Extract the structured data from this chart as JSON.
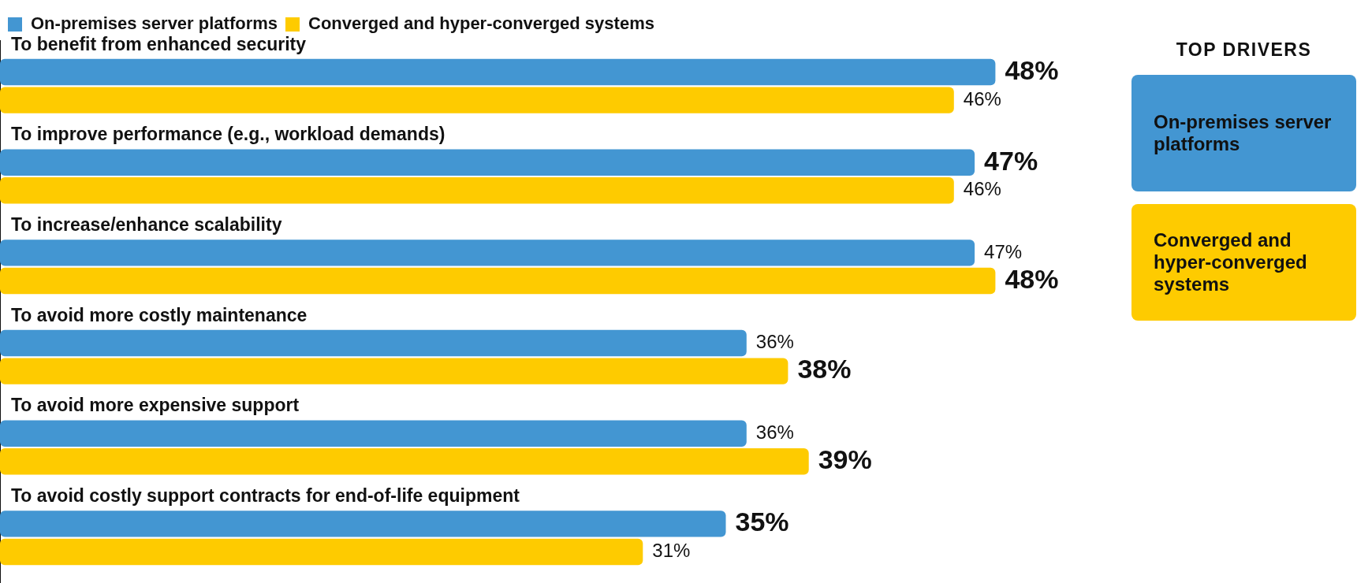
{
  "chart_data": {
    "type": "bar",
    "orientation": "horizontal",
    "categories": [
      "To benefit from enhanced security",
      "To improve performance (e.g., workload demands)",
      "To increase/enhance scalability",
      "To avoid more costly maintenance",
      "To avoid more expensive support",
      "To avoid costly support contracts for end-of-life equipment"
    ],
    "series": [
      {
        "name": "On-premises server platforms",
        "color": "#4396d2",
        "values": [
          48,
          47,
          47,
          36,
          36,
          35
        ],
        "value_labels": [
          "48%",
          "47%",
          "47%",
          "36%",
          "36%",
          "35%"
        ]
      },
      {
        "name": "Converged and hyper-converged systems",
        "color": "#fecb00",
        "values": [
          46,
          46,
          48,
          38,
          39,
          31
        ],
        "value_labels": [
          "46%",
          "46%",
          "48%",
          "38%",
          "39%",
          "31%"
        ]
      }
    ],
    "legend": "top left",
    "annotations": [
      "TOP DRIVERS",
      "On-premises server platforms",
      "Converged and hyper-converged systems"
    ]
  }
}
